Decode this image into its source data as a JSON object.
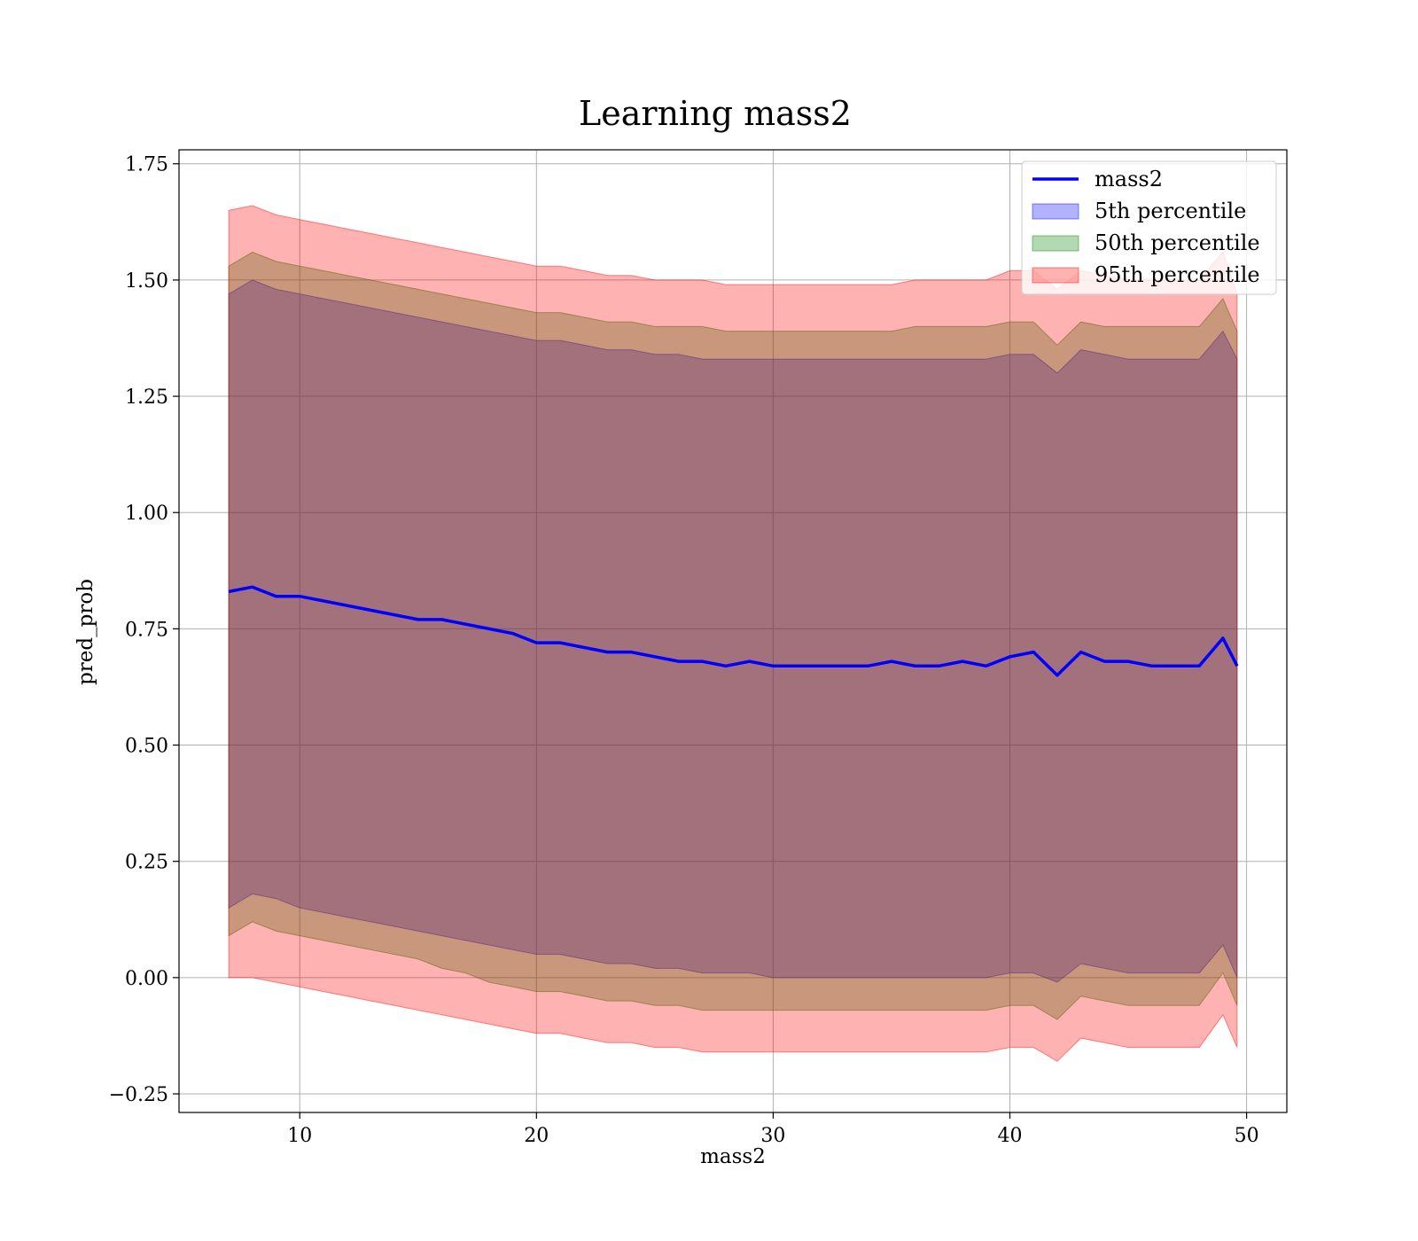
{
  "chart_data": {
    "type": "line",
    "title": "Learning mass2",
    "xlabel": "mass2",
    "ylabel": "pred_prob",
    "xlim": [
      4.9,
      51.7
    ],
    "ylim": [
      -0.29,
      1.78
    ],
    "xticks": [
      {
        "value": 10,
        "label": "10"
      },
      {
        "value": 20,
        "label": "20"
      },
      {
        "value": 30,
        "label": "30"
      },
      {
        "value": 40,
        "label": "40"
      },
      {
        "value": 50,
        "label": "50"
      }
    ],
    "yticks": [
      {
        "value": -0.25,
        "label": "−0.25"
      },
      {
        "value": 0,
        "label": "0.00"
      },
      {
        "value": 0.25,
        "label": "0.25"
      },
      {
        "value": 0.5,
        "label": "0.50"
      },
      {
        "value": 0.75,
        "label": "0.75"
      },
      {
        "value": 1.0,
        "label": "1.00"
      },
      {
        "value": 1.25,
        "label": "1.25"
      },
      {
        "value": 1.5,
        "label": "1.50"
      },
      {
        "value": 1.75,
        "label": "1.75"
      }
    ],
    "grid": true,
    "legend_position": "top-right",
    "legend": [
      {
        "label": "mass2",
        "kind": "line",
        "color": "#0000ff"
      },
      {
        "label": "5th percentile",
        "kind": "band",
        "color": "#0000ff"
      },
      {
        "label": "50th percentile",
        "kind": "band",
        "color": "#008000"
      },
      {
        "label": "95th percentile",
        "kind": "band",
        "color": "#ff0000"
      }
    ],
    "x": [
      7,
      8,
      9,
      10,
      11,
      12,
      13,
      14,
      15,
      16,
      17,
      18,
      19,
      20,
      21,
      22,
      23,
      24,
      25,
      26,
      27,
      28,
      29,
      30,
      31,
      32,
      33,
      34,
      35,
      36,
      37,
      38,
      39,
      40,
      41,
      42,
      43,
      44,
      45,
      46,
      47,
      48,
      49,
      49.6
    ],
    "series": [
      {
        "name": "mass2",
        "color": "#0000ff",
        "values": [
          0.83,
          0.84,
          0.82,
          0.82,
          0.81,
          0.8,
          0.79,
          0.78,
          0.77,
          0.77,
          0.76,
          0.75,
          0.74,
          0.72,
          0.72,
          0.71,
          0.7,
          0.7,
          0.69,
          0.68,
          0.68,
          0.67,
          0.68,
          0.67,
          0.67,
          0.67,
          0.67,
          0.67,
          0.68,
          0.67,
          0.67,
          0.68,
          0.67,
          0.69,
          0.7,
          0.65,
          0.7,
          0.68,
          0.68,
          0.67,
          0.67,
          0.67,
          0.73,
          0.67
        ]
      }
    ],
    "bands": [
      {
        "label": "5th percentile",
        "color": "#0000ff",
        "lower": [
          0.15,
          0.18,
          0.17,
          0.15,
          0.14,
          0.13,
          0.12,
          0.11,
          0.1,
          0.09,
          0.08,
          0.07,
          0.06,
          0.05,
          0.05,
          0.04,
          0.03,
          0.03,
          0.02,
          0.02,
          0.01,
          0.01,
          0.01,
          0.0,
          0.0,
          0.0,
          0.0,
          0.0,
          0.0,
          0.0,
          0.0,
          0.0,
          0.0,
          0.01,
          0.01,
          -0.01,
          0.03,
          0.02,
          0.01,
          0.01,
          0.01,
          0.01,
          0.07,
          0.0
        ],
        "upper": [
          1.47,
          1.5,
          1.48,
          1.47,
          1.46,
          1.45,
          1.44,
          1.43,
          1.42,
          1.41,
          1.4,
          1.39,
          1.38,
          1.37,
          1.37,
          1.36,
          1.35,
          1.35,
          1.34,
          1.34,
          1.33,
          1.33,
          1.33,
          1.33,
          1.33,
          1.33,
          1.33,
          1.33,
          1.33,
          1.33,
          1.33,
          1.33,
          1.33,
          1.34,
          1.34,
          1.3,
          1.35,
          1.34,
          1.33,
          1.33,
          1.33,
          1.33,
          1.39,
          1.33
        ]
      },
      {
        "label": "50th percentile",
        "color": "#008000",
        "lower": [
          0.09,
          0.12,
          0.1,
          0.09,
          0.08,
          0.07,
          0.06,
          0.05,
          0.04,
          0.02,
          0.01,
          -0.01,
          -0.02,
          -0.03,
          -0.03,
          -0.04,
          -0.05,
          -0.05,
          -0.06,
          -0.06,
          -0.07,
          -0.07,
          -0.07,
          -0.07,
          -0.07,
          -0.07,
          -0.07,
          -0.07,
          -0.07,
          -0.07,
          -0.07,
          -0.07,
          -0.07,
          -0.06,
          -0.06,
          -0.09,
          -0.04,
          -0.05,
          -0.06,
          -0.06,
          -0.06,
          -0.06,
          0.01,
          -0.06
        ],
        "upper": [
          1.53,
          1.56,
          1.54,
          1.53,
          1.52,
          1.51,
          1.5,
          1.49,
          1.48,
          1.47,
          1.46,
          1.45,
          1.44,
          1.43,
          1.43,
          1.42,
          1.41,
          1.41,
          1.4,
          1.4,
          1.4,
          1.39,
          1.39,
          1.39,
          1.39,
          1.39,
          1.39,
          1.39,
          1.39,
          1.4,
          1.4,
          1.4,
          1.4,
          1.41,
          1.41,
          1.36,
          1.41,
          1.4,
          1.4,
          1.4,
          1.4,
          1.4,
          1.46,
          1.39
        ]
      },
      {
        "label": "95th percentile",
        "color": "#ff0000",
        "lower": [
          0.0,
          0.0,
          -0.01,
          -0.02,
          -0.03,
          -0.04,
          -0.05,
          -0.06,
          -0.07,
          -0.08,
          -0.09,
          -0.1,
          -0.11,
          -0.12,
          -0.12,
          -0.13,
          -0.14,
          -0.14,
          -0.15,
          -0.15,
          -0.16,
          -0.16,
          -0.16,
          -0.16,
          -0.16,
          -0.16,
          -0.16,
          -0.16,
          -0.16,
          -0.16,
          -0.16,
          -0.16,
          -0.16,
          -0.15,
          -0.15,
          -0.18,
          -0.13,
          -0.14,
          -0.15,
          -0.15,
          -0.15,
          -0.15,
          -0.08,
          -0.15
        ],
        "upper": [
          1.65,
          1.66,
          1.64,
          1.63,
          1.62,
          1.61,
          1.6,
          1.59,
          1.58,
          1.57,
          1.56,
          1.55,
          1.54,
          1.53,
          1.53,
          1.52,
          1.51,
          1.51,
          1.5,
          1.5,
          1.5,
          1.49,
          1.49,
          1.49,
          1.49,
          1.49,
          1.49,
          1.49,
          1.49,
          1.5,
          1.5,
          1.5,
          1.5,
          1.52,
          1.52,
          1.48,
          1.52,
          1.51,
          1.5,
          1.5,
          1.5,
          1.5,
          1.56,
          1.47
        ]
      }
    ]
  }
}
